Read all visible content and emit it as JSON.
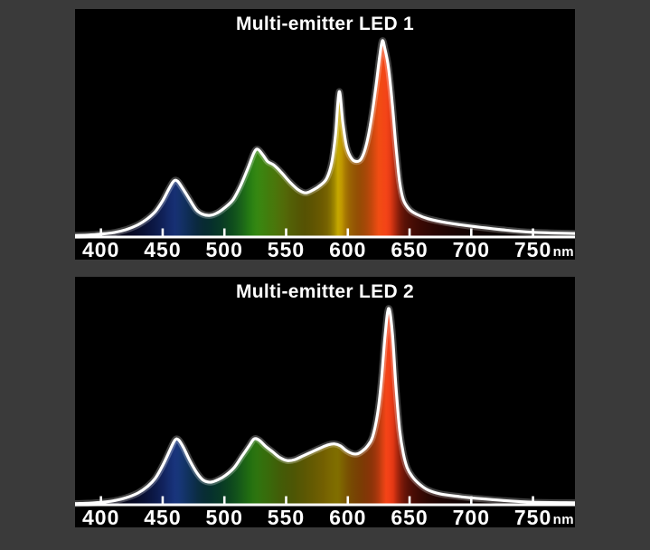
{
  "page": {
    "background_color": "#3a3a3a",
    "panel_background_color": "#000000",
    "text_color": "#ffffff"
  },
  "chart_data": [
    {
      "type": "area",
      "title": "Multi-emitter LED 1",
      "x_unit": "nm",
      "x_ticks": [
        400,
        450,
        500,
        550,
        600,
        650,
        700,
        750
      ],
      "x_range_nm": [
        379,
        784
      ],
      "y_range": [
        0,
        1.05
      ],
      "grid": false,
      "legend": false,
      "axis_color": "#ffffff",
      "line_color": "#ffffff",
      "peaks_nm": [
        460,
        527,
        593,
        628
      ],
      "points_nm_intensity": [
        [
          379,
          0.008
        ],
        [
          390,
          0.01
        ],
        [
          400,
          0.015
        ],
        [
          410,
          0.022
        ],
        [
          420,
          0.037
        ],
        [
          430,
          0.062
        ],
        [
          438,
          0.095
        ],
        [
          444,
          0.13
        ],
        [
          450,
          0.185
        ],
        [
          455,
          0.245
        ],
        [
          459,
          0.285
        ],
        [
          462,
          0.285
        ],
        [
          466,
          0.25
        ],
        [
          471,
          0.2
        ],
        [
          477,
          0.14
        ],
        [
          482,
          0.117
        ],
        [
          488,
          0.11
        ],
        [
          494,
          0.122
        ],
        [
          500,
          0.148
        ],
        [
          507,
          0.19
        ],
        [
          513,
          0.26
        ],
        [
          519,
          0.35
        ],
        [
          524,
          0.43
        ],
        [
          527,
          0.447
        ],
        [
          531,
          0.42
        ],
        [
          535,
          0.385
        ],
        [
          540,
          0.367
        ],
        [
          546,
          0.33
        ],
        [
          553,
          0.28
        ],
        [
          560,
          0.24
        ],
        [
          566,
          0.225
        ],
        [
          572,
          0.24
        ],
        [
          578,
          0.265
        ],
        [
          583,
          0.3
        ],
        [
          587,
          0.38
        ],
        [
          590,
          0.52
        ],
        [
          593,
          0.74
        ],
        [
          596,
          0.58
        ],
        [
          599,
          0.46
        ],
        [
          603,
          0.4
        ],
        [
          607,
          0.385
        ],
        [
          611,
          0.4
        ],
        [
          615,
          0.47
        ],
        [
          619,
          0.6
        ],
        [
          623,
          0.78
        ],
        [
          626,
          0.93
        ],
        [
          628,
          1.0
        ],
        [
          630,
          0.96
        ],
        [
          633,
          0.86
        ],
        [
          636,
          0.68
        ],
        [
          639,
          0.46
        ],
        [
          642,
          0.28
        ],
        [
          645,
          0.19
        ],
        [
          650,
          0.14
        ],
        [
          656,
          0.115
        ],
        [
          665,
          0.093
        ],
        [
          680,
          0.073
        ],
        [
          700,
          0.055
        ],
        [
          725,
          0.037
        ],
        [
          750,
          0.024
        ],
        [
          784,
          0.018
        ]
      ]
    },
    {
      "type": "area",
      "title": "Multi-emitter LED 2",
      "x_unit": "nm",
      "x_ticks": [
        400,
        450,
        500,
        550,
        600,
        650,
        700,
        750
      ],
      "x_range_nm": [
        379,
        784
      ],
      "y_range": [
        0,
        1.05
      ],
      "grid": false,
      "legend": false,
      "axis_color": "#ffffff",
      "line_color": "#ffffff",
      "peaks_nm": [
        461,
        524,
        589,
        633
      ],
      "points_nm_intensity": [
        [
          379,
          0.006
        ],
        [
          390,
          0.008
        ],
        [
          400,
          0.012
        ],
        [
          410,
          0.02
        ],
        [
          420,
          0.035
        ],
        [
          430,
          0.06
        ],
        [
          438,
          0.095
        ],
        [
          444,
          0.135
        ],
        [
          450,
          0.2
        ],
        [
          456,
          0.28
        ],
        [
          460,
          0.33
        ],
        [
          463,
          0.33
        ],
        [
          467,
          0.29
        ],
        [
          472,
          0.225
        ],
        [
          478,
          0.16
        ],
        [
          483,
          0.125
        ],
        [
          489,
          0.115
        ],
        [
          495,
          0.128
        ],
        [
          501,
          0.15
        ],
        [
          508,
          0.19
        ],
        [
          514,
          0.245
        ],
        [
          520,
          0.3
        ],
        [
          524,
          0.335
        ],
        [
          528,
          0.33
        ],
        [
          533,
          0.3
        ],
        [
          539,
          0.27
        ],
        [
          545,
          0.24
        ],
        [
          551,
          0.225
        ],
        [
          557,
          0.23
        ],
        [
          564,
          0.25
        ],
        [
          571,
          0.27
        ],
        [
          578,
          0.29
        ],
        [
          584,
          0.305
        ],
        [
          589,
          0.31
        ],
        [
          594,
          0.3
        ],
        [
          599,
          0.275
        ],
        [
          604,
          0.26
        ],
        [
          608,
          0.26
        ],
        [
          612,
          0.275
        ],
        [
          616,
          0.3
        ],
        [
          620,
          0.345
        ],
        [
          624,
          0.46
        ],
        [
          627,
          0.62
        ],
        [
          630,
          0.85
        ],
        [
          633,
          1.0
        ],
        [
          636,
          0.88
        ],
        [
          639,
          0.6
        ],
        [
          642,
          0.38
        ],
        [
          645,
          0.26
        ],
        [
          648,
          0.19
        ],
        [
          652,
          0.145
        ],
        [
          658,
          0.105
        ],
        [
          665,
          0.075
        ],
        [
          675,
          0.055
        ],
        [
          690,
          0.042
        ],
        [
          700,
          0.035
        ],
        [
          725,
          0.022
        ],
        [
          750,
          0.013
        ],
        [
          784,
          0.01
        ]
      ]
    }
  ],
  "spectrum_base_colors": [
    [
      380,
      "#000014"
    ],
    [
      410,
      "#1c1690"
    ],
    [
      440,
      "#2244cc"
    ],
    [
      460,
      "#2a58d4"
    ],
    [
      475,
      "#1e6ab4"
    ],
    [
      490,
      "#129488"
    ],
    [
      505,
      "#20b048"
    ],
    [
      520,
      "#3cc41e"
    ],
    [
      535,
      "#66c414"
    ],
    [
      550,
      "#94b80e"
    ],
    [
      565,
      "#b4ac06"
    ],
    [
      580,
      "#d0ac02"
    ],
    [
      592,
      "#e4c400"
    ],
    [
      600,
      "#e49a04"
    ],
    [
      610,
      "#ea7408"
    ],
    [
      620,
      "#ee5410"
    ],
    [
      632,
      "#f44218"
    ],
    [
      645,
      "#dc2c10"
    ],
    [
      658,
      "#bc1c0a"
    ],
    [
      672,
      "#901408"
    ],
    [
      690,
      "#641008"
    ],
    [
      710,
      "#441006"
    ],
    [
      740,
      "#2a0c04"
    ],
    [
      784,
      "#180a04"
    ]
  ]
}
